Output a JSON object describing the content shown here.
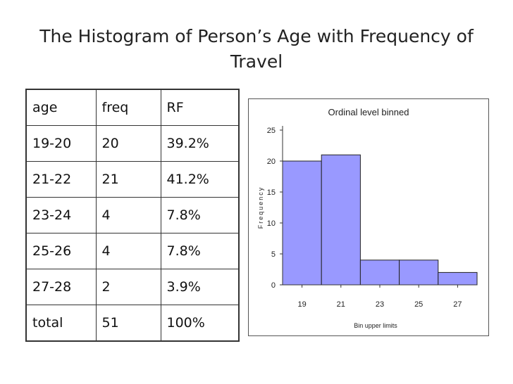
{
  "slide": {
    "title": "The Histogram of Person’s Age with Frequency of Travel"
  },
  "table": {
    "headers": [
      "age",
      "freq",
      "RF"
    ],
    "rows": [
      [
        "19-20",
        "20",
        "39.2%"
      ],
      [
        "21-22",
        "21",
        "41.2%"
      ],
      [
        "23-24",
        "4",
        "7.8%"
      ],
      [
        "25-26",
        "4",
        "7.8%"
      ],
      [
        "27-28",
        "2",
        "3.9%"
      ],
      [
        "total",
        "51",
        "100%"
      ]
    ]
  },
  "chart_data": {
    "type": "bar",
    "title": "Ordinal level binned",
    "xlabel": "Bin upper limits",
    "ylabel": "Frequency",
    "categories": [
      "19",
      "21",
      "23",
      "25",
      "27"
    ],
    "values": [
      20,
      21,
      4,
      4,
      2
    ],
    "ylim": [
      0,
      25
    ],
    "yticks": [
      0,
      5,
      10,
      15,
      20,
      25
    ],
    "grid": false,
    "legend": "none",
    "bar_color": "#9999ff",
    "bar_edge_color": "#222222"
  }
}
